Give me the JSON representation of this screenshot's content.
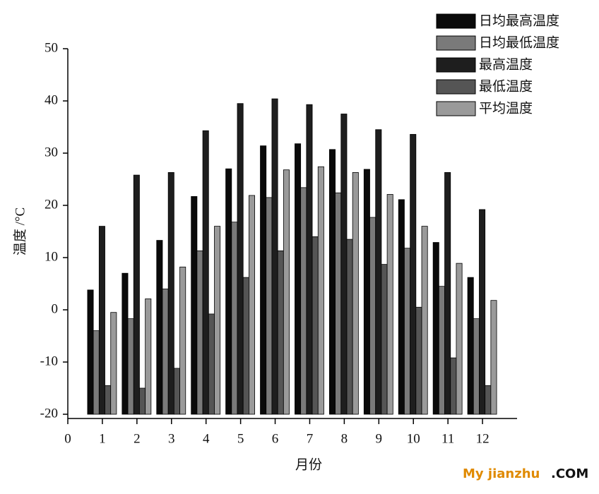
{
  "chart_data": {
    "type": "bar",
    "ylabel": "温度 /°C",
    "xlabel": "月份",
    "x": [
      1,
      2,
      3,
      4,
      5,
      6,
      7,
      8,
      9,
      10,
      11,
      12
    ],
    "xlim": [
      0,
      13
    ],
    "xticks": [
      0,
      1,
      2,
      3,
      4,
      5,
      6,
      7,
      8,
      9,
      10,
      11,
      12
    ],
    "ylim": [
      -20,
      50
    ],
    "yticks": [
      -20,
      -10,
      0,
      10,
      20,
      30,
      40,
      50
    ],
    "legend": "top-right",
    "series": [
      {
        "name": "日均最高温度",
        "color": "#0a0a0a",
        "values": [
          3.8,
          7,
          13.3,
          21.7,
          27,
          31.4,
          31.8,
          30.7,
          26.9,
          21.1,
          12.9,
          6.2
        ]
      },
      {
        "name": "日均最低温度",
        "color": "#7a7a7a",
        "values": [
          -4,
          -1.7,
          4,
          11.3,
          16.8,
          21.5,
          23.4,
          22.4,
          17.7,
          11.8,
          4.5,
          -1.7
        ]
      },
      {
        "name": "最高温度",
        "color": "#1e1e1e",
        "values": [
          16,
          25.8,
          26.3,
          34.3,
          39.5,
          40.4,
          39.3,
          37.5,
          34.5,
          33.6,
          26.3,
          19.2
        ]
      },
      {
        "name": "最低温度",
        "color": "#555555",
        "values": [
          -14.5,
          -15,
          -11.2,
          -0.8,
          6.2,
          11.3,
          14,
          13.5,
          8.7,
          0.5,
          -9.2,
          -14.5
        ]
      },
      {
        "name": "平均温度",
        "color": "#9a9a9a",
        "values": [
          -0.5,
          2.1,
          8.2,
          16,
          21.9,
          26.8,
          27.4,
          26.3,
          22.1,
          16,
          8.9,
          1.8
        ]
      }
    ]
  },
  "watermark": {
    "brand": "My jianzhu",
    "suffix": ".COM"
  }
}
